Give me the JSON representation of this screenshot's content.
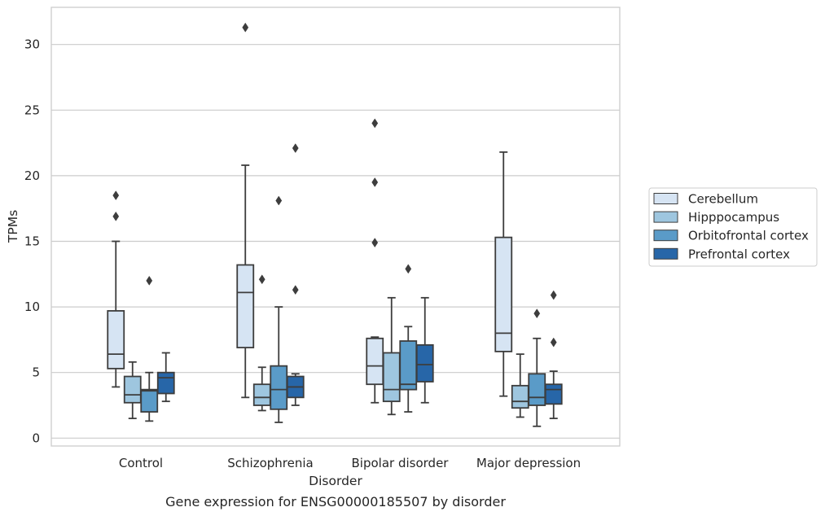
{
  "chart_data": {
    "type": "box",
    "caption": "Gene expression for ENSG00000185507 by disorder",
    "xlabel": "Disorder",
    "ylabel": "TPMs",
    "ylim": [
      -0.6,
      33.0
    ],
    "yticks": [
      "0",
      "5",
      "10",
      "15",
      "20",
      "25",
      "30"
    ],
    "grid": true,
    "legend_position": "right",
    "categories": [
      "Control",
      "Schizophrenia",
      "Bipolar disorder",
      "Major depression"
    ],
    "series": [
      {
        "name": "Cerebellum",
        "color": "#d6e4f3",
        "boxes": [
          {
            "whisker_low": 3.9,
            "q1": 5.3,
            "median": 6.4,
            "q3": 9.7,
            "whisker_high": 15.0,
            "outliers": [
              16.9,
              18.5
            ]
          },
          {
            "whisker_low": 3.1,
            "q1": 6.9,
            "median": 11.1,
            "q3": 13.2,
            "whisker_high": 20.8,
            "outliers": [
              31.3
            ]
          },
          {
            "whisker_low": 2.7,
            "q1": 4.1,
            "median": 5.5,
            "q3": 7.6,
            "whisker_high": 7.7,
            "outliers": [
              14.9,
              19.5,
              24.0
            ]
          },
          {
            "whisker_low": 3.2,
            "q1": 6.6,
            "median": 8.0,
            "q3": 15.3,
            "whisker_high": 21.8,
            "outliers": []
          }
        ]
      },
      {
        "name": "Hipppocampus",
        "color": "#9ec6df",
        "boxes": [
          {
            "whisker_low": 1.5,
            "q1": 2.7,
            "median": 3.3,
            "q3": 4.7,
            "whisker_high": 5.8,
            "outliers": []
          },
          {
            "whisker_low": 2.1,
            "q1": 2.5,
            "median": 3.1,
            "q3": 4.1,
            "whisker_high": 5.4,
            "outliers": [
              12.1
            ]
          },
          {
            "whisker_low": 1.8,
            "q1": 2.8,
            "median": 3.7,
            "q3": 6.5,
            "whisker_high": 10.7,
            "outliers": []
          },
          {
            "whisker_low": 1.6,
            "q1": 2.3,
            "median": 2.8,
            "q3": 4.0,
            "whisker_high": 6.4,
            "outliers": []
          }
        ]
      },
      {
        "name": "Orbitofrontal cortex",
        "color": "#5a9bc8",
        "boxes": [
          {
            "whisker_low": 1.3,
            "q1": 2.0,
            "median": 3.6,
            "q3": 3.7,
            "whisker_high": 5.0,
            "outliers": [
              12.0
            ]
          },
          {
            "whisker_low": 1.2,
            "q1": 2.2,
            "median": 3.7,
            "q3": 5.5,
            "whisker_high": 10.0,
            "outliers": [
              18.1
            ]
          },
          {
            "whisker_low": 2.0,
            "q1": 3.7,
            "median": 4.1,
            "q3": 7.4,
            "whisker_high": 8.5,
            "outliers": [
              12.9
            ]
          },
          {
            "whisker_low": 0.9,
            "q1": 2.5,
            "median": 3.1,
            "q3": 4.9,
            "whisker_high": 7.6,
            "outliers": [
              9.5
            ]
          }
        ]
      },
      {
        "name": "Prefrontal cortex",
        "color": "#2766a8",
        "boxes": [
          {
            "whisker_low": 2.8,
            "q1": 3.4,
            "median": 4.6,
            "q3": 5.0,
            "whisker_high": 6.5,
            "outliers": []
          },
          {
            "whisker_low": 2.5,
            "q1": 3.1,
            "median": 3.9,
            "q3": 4.7,
            "whisker_high": 4.9,
            "outliers": [
              11.3,
              22.1
            ]
          },
          {
            "whisker_low": 2.7,
            "q1": 4.3,
            "median": 5.6,
            "q3": 7.1,
            "whisker_high": 10.7,
            "outliers": []
          },
          {
            "whisker_low": 1.5,
            "q1": 2.6,
            "median": 3.7,
            "q3": 4.1,
            "whisker_high": 5.1,
            "outliers": [
              7.3,
              10.9
            ]
          }
        ]
      }
    ]
  }
}
